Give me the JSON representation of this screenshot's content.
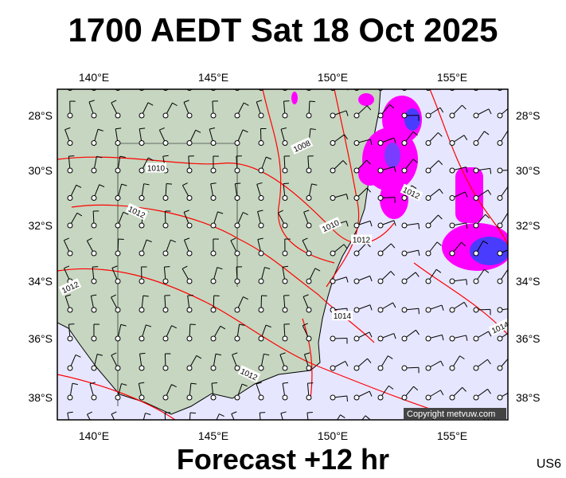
{
  "title": "1700 AEDT Sat 18 Oct 2025",
  "subtitle": "Forecast +12 hr",
  "region_code": "US6",
  "copyright": "Copyright metvuw.com",
  "colors": {
    "ocean": "#e6e6ff",
    "land": "#c6d6c0",
    "isobar": "#ff0000",
    "rain_light": "#ff00ff",
    "rain_heavy": "#4a3cff"
  },
  "lon_ticks": [
    "140°E",
    "145°E",
    "150°E",
    "155°E"
  ],
  "lat_ticks": [
    "28°S",
    "30°S",
    "32°S",
    "34°S",
    "36°S",
    "38°S"
  ],
  "isobar_labels": [
    {
      "text": "1008",
      "lon": 148.7,
      "lat": 29.1
    },
    {
      "text": "1010",
      "lon": 142.6,
      "lat": 29.9
    },
    {
      "text": "1012",
      "lon": 141.8,
      "lat": 31.5
    },
    {
      "text": "1010",
      "lon": 149.9,
      "lat": 32.0
    },
    {
      "text": "1012",
      "lon": 151.2,
      "lat": 32.5
    },
    {
      "text": "1012",
      "lon": 153.3,
      "lat": 30.8
    },
    {
      "text": "1012",
      "lon": 139.0,
      "lat": 34.2
    },
    {
      "text": "1014",
      "lon": 150.4,
      "lat": 35.2
    },
    {
      "text": "1012",
      "lon": 146.5,
      "lat": 37.2
    },
    {
      "text": "1014",
      "lon": 157.0,
      "lat": 35.6
    }
  ]
}
